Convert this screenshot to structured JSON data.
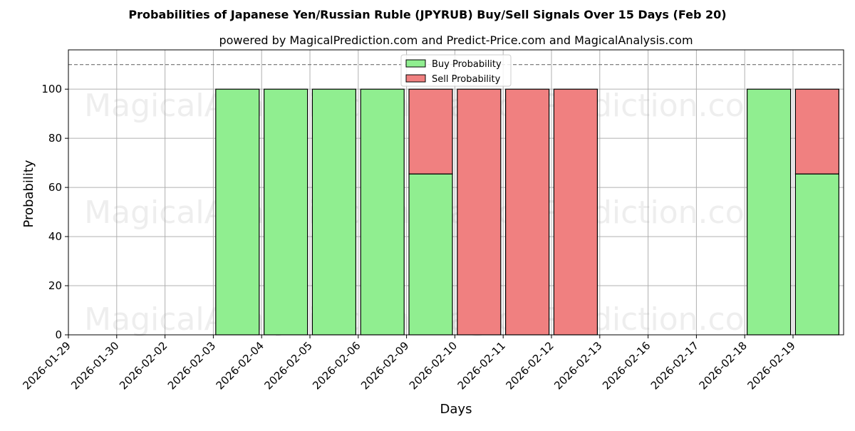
{
  "chart_data": {
    "type": "bar",
    "stacked": true,
    "title": "Probabilities of Japanese Yen/Russian Ruble (JPYRUB) Buy/Sell Signals Over 15 Days (Feb 20)",
    "subtitle": "powered by MagicalPrediction.com and Predict-Price.com and MagicalAnalysis.com",
    "xlabel": "Days",
    "ylabel": "Probability",
    "ylim": [
      0,
      116
    ],
    "yticks": [
      0,
      20,
      40,
      60,
      80,
      100
    ],
    "reference_line": 110,
    "grid": true,
    "legend_position": "top-center",
    "categories": [
      "2026-01-29",
      "2026-01-30",
      "2026-02-02",
      "2026-02-03",
      "2026-02-04",
      "2026-02-05",
      "2026-02-06",
      "2026-02-09",
      "2026-02-10",
      "2026-02-11",
      "2026-02-12",
      "2026-02-13",
      "2026-02-16",
      "2026-02-17",
      "2026-02-18",
      "2026-02-19"
    ],
    "series": [
      {
        "name": "Buy Probability",
        "color": "#90ee90",
        "values": [
          null,
          null,
          null,
          100,
          100,
          100,
          100,
          65.5,
          0,
          0,
          0,
          null,
          null,
          null,
          100,
          65.5
        ]
      },
      {
        "name": "Sell Probability",
        "color": "#f08080",
        "values": [
          null,
          null,
          null,
          0,
          0,
          0,
          0,
          34.5,
          100,
          100,
          100,
          null,
          null,
          null,
          0,
          34.5
        ]
      }
    ],
    "watermarks": [
      "MagicalAnalysis.com",
      "MagicalPrediction.com"
    ]
  }
}
